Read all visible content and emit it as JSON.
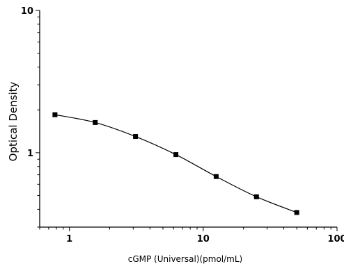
{
  "chart_data": {
    "type": "line",
    "xlabel": "cGMP (Universal)(pmol/mL)",
    "ylabel": "Optical Density",
    "x_scale": "log",
    "y_scale": "log",
    "xlim": [
      0.6,
      100
    ],
    "ylim": [
      0.3,
      10
    ],
    "x_ticks": [
      {
        "value": 1,
        "label": "1"
      },
      {
        "value": 10,
        "label": "10"
      },
      {
        "value": 100,
        "label": "100"
      }
    ],
    "y_ticks": [
      {
        "value": 1,
        "label": "1"
      },
      {
        "value": 10,
        "label": "10"
      }
    ],
    "series": [
      {
        "points": [
          {
            "x": 0.78,
            "y": 1.85
          },
          {
            "x": 1.56,
            "y": 1.63
          },
          {
            "x": 3.12,
            "y": 1.3
          },
          {
            "x": 6.25,
            "y": 0.97
          },
          {
            "x": 12.5,
            "y": 0.68
          },
          {
            "x": 25,
            "y": 0.49
          },
          {
            "x": 50,
            "y": 0.38
          }
        ]
      }
    ],
    "grid": false,
    "legend": "none",
    "colors": {
      "line": "#000000",
      "marker": "#000000",
      "axis": "#000000"
    }
  }
}
